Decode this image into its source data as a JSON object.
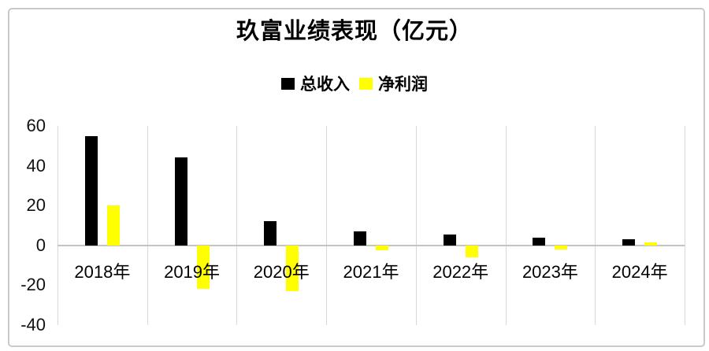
{
  "frame": {
    "background": "#ffffff",
    "border_color": "#c9c9c9"
  },
  "chart_data": {
    "type": "bar",
    "title": "玖富业绩表现（亿元）",
    "categories": [
      "2018年",
      "2019年",
      "2020年",
      "2021年",
      "2022年",
      "2023年",
      "2024年"
    ],
    "series": [
      {
        "name": "总收入",
        "key": "revenue",
        "color": "#000000",
        "values": [
          55,
          44,
          12,
          7,
          5.5,
          4,
          3
        ]
      },
      {
        "name": "净利润",
        "key": "profit",
        "color": "#ffff00",
        "values": [
          20,
          -22,
          -23,
          -2.5,
          -6,
          -2,
          1.5
        ]
      }
    ],
    "ylim": [
      -40,
      60
    ],
    "yticks": [
      60,
      40,
      20,
      0,
      -20,
      -40
    ],
    "xlabel": "",
    "ylabel": "",
    "legend_position": "top-center",
    "grid": "vertical-category-separators-and-zero-axis-only",
    "gridline_color": "#d9d9d9",
    "zero_line_color": "#c4c4c4",
    "text_color": "#000000"
  }
}
